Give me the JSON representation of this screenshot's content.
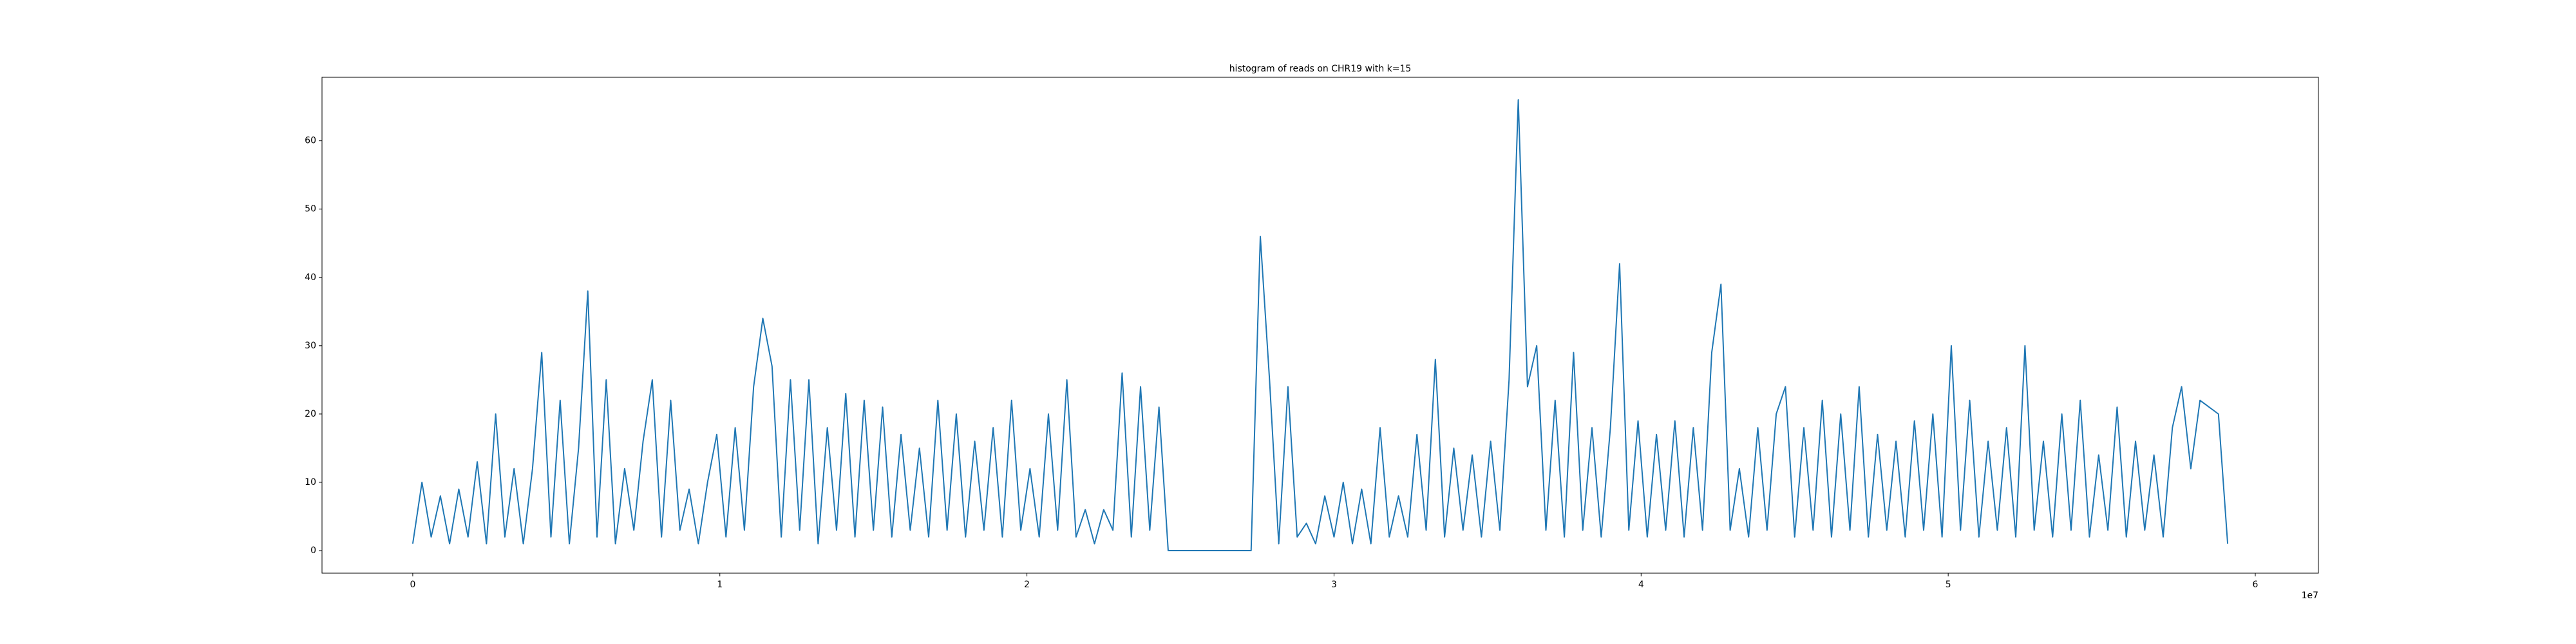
{
  "chart_data": {
    "type": "line",
    "title": "histogram of reads on CHR19 with k=15",
    "x_offset_label": "1e7",
    "color": "#1f77b4",
    "x": [
      0,
      300000,
      600000,
      900000,
      1200000,
      1500000,
      1800000,
      2100000,
      2400000,
      2700000,
      3000000,
      3300000,
      3600000,
      3900000,
      4200000,
      4500000,
      4800000,
      5100000,
      5400000,
      5700000,
      6000000,
      6300000,
      6600000,
      6900000,
      7200000,
      7500000,
      7800000,
      8100000,
      8400000,
      8700000,
      9000000,
      9300000,
      9600000,
      9900000,
      10200000,
      10500000,
      10800000,
      11100000,
      11400000,
      11700000,
      12000000,
      12300000,
      12600000,
      12900000,
      13200000,
      13500000,
      13800000,
      14100000,
      14400000,
      14700000,
      15000000,
      15300000,
      15600000,
      15900000,
      16200000,
      16500000,
      16800000,
      17100000,
      17400000,
      17700000,
      18000000,
      18300000,
      18600000,
      18900000,
      19200000,
      19500000,
      19800000,
      20100000,
      20400000,
      20700000,
      21000000,
      21300000,
      21600000,
      21900000,
      22200000,
      22500000,
      22800000,
      23100000,
      23400000,
      23700000,
      24000000,
      24300000,
      24600000,
      24900000,
      25200000,
      25500000,
      25800000,
      26100000,
      26400000,
      26700000,
      27000000,
      27300000,
      27600000,
      27900000,
      28200000,
      28500000,
      28800000,
      29100000,
      29400000,
      29700000,
      30000000,
      30300000,
      30600000,
      30900000,
      31200000,
      31500000,
      31800000,
      32100000,
      32400000,
      32700000,
      33000000,
      33300000,
      33600000,
      33900000,
      34200000,
      34500000,
      34800000,
      35100000,
      35400000,
      35700000,
      36000000,
      36300000,
      36600000,
      36900000,
      37200000,
      37500000,
      37800000,
      38100000,
      38400000,
      38700000,
      39000000,
      39300000,
      39600000,
      39900000,
      40200000,
      40500000,
      40800000,
      41100000,
      41400000,
      41700000,
      42000000,
      42300000,
      42600000,
      42900000,
      43200000,
      43500000,
      43800000,
      44100000,
      44400000,
      44700000,
      45000000,
      45300000,
      45600000,
      45900000,
      46200000,
      46500000,
      46800000,
      47100000,
      47400000,
      47700000,
      48000000,
      48300000,
      48600000,
      48900000,
      49200000,
      49500000,
      49800000,
      50100000,
      50400000,
      50700000,
      51000000,
      51300000,
      51600000,
      51900000,
      52200000,
      52500000,
      52800000,
      53100000,
      53400000,
      53700000,
      54000000,
      54300000,
      54600000,
      54900000,
      55200000,
      55500000,
      55800000,
      56100000,
      56400000,
      56700000,
      57000000,
      57300000,
      57600000,
      57900000,
      58200000,
      58500000,
      58800000,
      59100000
    ],
    "values": [
      1,
      10,
      2,
      8,
      1,
      9,
      2,
      13,
      1,
      20,
      2,
      12,
      1,
      12,
      29,
      2,
      22,
      1,
      15,
      38,
      2,
      25,
      1,
      12,
      3,
      16,
      25,
      2,
      22,
      3,
      9,
      1,
      10,
      17,
      2,
      18,
      3,
      24,
      34,
      27,
      2,
      25,
      3,
      25,
      1,
      18,
      3,
      23,
      2,
      22,
      3,
      21,
      2,
      17,
      3,
      15,
      2,
      22,
      3,
      20,
      2,
      16,
      3,
      18,
      2,
      22,
      3,
      12,
      2,
      20,
      3,
      25,
      2,
      6,
      1,
      6,
      3,
      26,
      2,
      24,
      3,
      21,
      0,
      0,
      0,
      0,
      0,
      0,
      0,
      0,
      0,
      0,
      46,
      25,
      1,
      24,
      2,
      4,
      1,
      8,
      2,
      10,
      1,
      9,
      1,
      18,
      2,
      8,
      2,
      17,
      3,
      28,
      2,
      15,
      3,
      14,
      2,
      16,
      3,
      25,
      66,
      24,
      30,
      3,
      22,
      2,
      29,
      3,
      18,
      2,
      18,
      42,
      3,
      19,
      2,
      17,
      3,
      19,
      2,
      18,
      3,
      29,
      39,
      3,
      12,
      2,
      18,
      3,
      20,
      24,
      2,
      18,
      3,
      22,
      2,
      20,
      3,
      24,
      2,
      17,
      3,
      16,
      2,
      19,
      3,
      20,
      2,
      30,
      3,
      22,
      2,
      16,
      3,
      18,
      2,
      30,
      3,
      16,
      2,
      20,
      3,
      22,
      2,
      14,
      3,
      21,
      2,
      16,
      3,
      14,
      2,
      18,
      24,
      12,
      22,
      21,
      20,
      1
    ],
    "xlim": [
      -2955000,
      62055000
    ],
    "xticks": [
      0,
      {
        "value": 10000000,
        "label": "1"
      },
      {
        "value": 20000000,
        "label": "2"
      },
      {
        "value": 30000000,
        "label": "3"
      },
      {
        "value": 40000000,
        "label": "4"
      },
      {
        "value": 50000000,
        "label": "5"
      },
      {
        "value": 60000000,
        "label": "6"
      }
    ],
    "ylim": [
      -3.3,
      69.3
    ],
    "yticks": [
      0,
      10,
      20,
      30,
      40,
      50,
      60
    ]
  }
}
